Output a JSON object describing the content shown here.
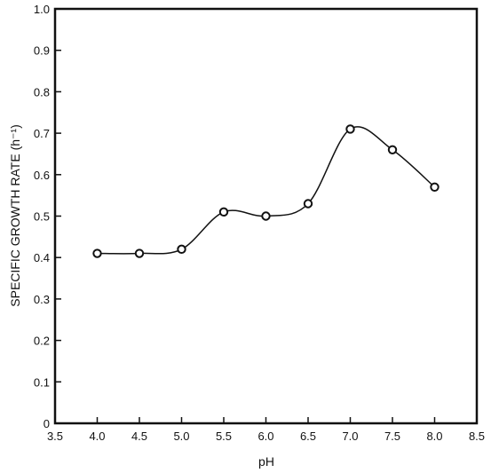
{
  "chart_data": {
    "type": "line",
    "title": "",
    "xlabel": "pH",
    "ylabel": "SPECIFIC GROWTH RATE (h⁻¹)",
    "xlim": [
      3.5,
      8.5
    ],
    "ylim": [
      0,
      1.0
    ],
    "x_ticks": [
      "3.5",
      "4.0",
      "4.5",
      "5.0",
      "5.5",
      "6.0",
      "6.5",
      "7.0",
      "7.5",
      "8.0",
      "8.5"
    ],
    "y_ticks": [
      "0",
      "0.1",
      "0.2",
      "0.3",
      "0.4",
      "0.5",
      "0.6",
      "0.7",
      "0.8",
      "0.9",
      "1.0"
    ],
    "grid": false,
    "series": [
      {
        "marker": "circle",
        "color": "#111111",
        "x": [
          4.0,
          4.5,
          5.0,
          5.5,
          6.0,
          6.5,
          7.0,
          7.5,
          8.0
        ],
        "y": [
          0.41,
          0.41,
          0.42,
          0.51,
          0.5,
          0.53,
          0.71,
          0.66,
          0.57
        ]
      }
    ]
  }
}
